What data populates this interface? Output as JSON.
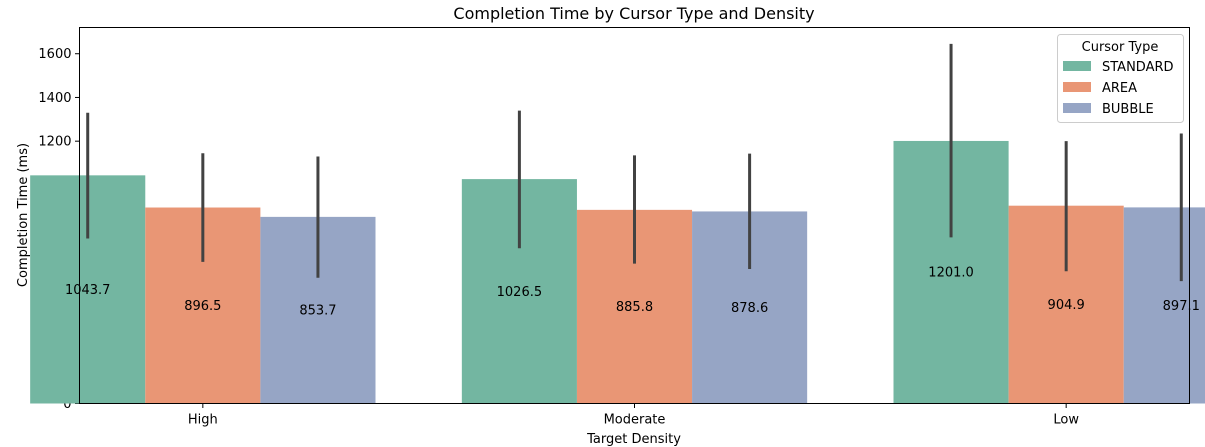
{
  "chart_data": {
    "type": "bar",
    "title": "Completion Time by Cursor Type and Density",
    "xlabel": "Target Density",
    "ylabel": "Completion Time (ms)",
    "categories": [
      "High",
      "Moderate",
      "Low"
    ],
    "ylim": [
      0,
      1720
    ],
    "yticks": [
      0,
      200,
      400,
      600,
      800,
      1000,
      1200,
      1400,
      1600
    ],
    "grid": false,
    "legend": {
      "title": "Cursor Type",
      "placement": "top-right"
    },
    "series": [
      {
        "name": "STANDARD",
        "color": "#73b6a1",
        "values": [
          1043.7,
          1026.5,
          1201.0
        ],
        "labels": [
          "1043.7",
          "1026.5",
          "1201.0"
        ],
        "ci_low": [
          755,
          710,
          760
        ],
        "ci_high": [
          1330,
          1340,
          1645
        ]
      },
      {
        "name": "AREA",
        "color": "#e99675",
        "values": [
          896.5,
          885.8,
          904.9
        ],
        "labels": [
          "896.5",
          "885.8",
          "904.9"
        ],
        "ci_low": [
          648,
          640,
          605
        ],
        "ci_high": [
          1145,
          1135,
          1200
        ]
      },
      {
        "name": "BUBBLE",
        "color": "#96a5c5",
        "values": [
          853.7,
          878.6,
          897.1
        ],
        "labels": [
          "853.7",
          "878.6",
          "897.1"
        ],
        "ci_low": [
          575,
          615,
          560
        ],
        "ci_high": [
          1130,
          1143,
          1235
        ]
      }
    ]
  }
}
